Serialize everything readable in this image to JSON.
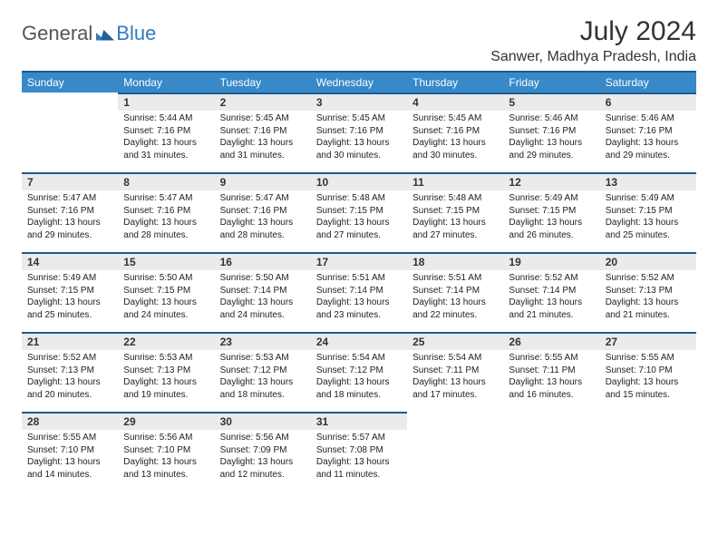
{
  "brand": {
    "general": "General",
    "blue": "Blue"
  },
  "title": "July 2024",
  "location": "Sanwer, Madhya Pradesh, India",
  "colors": {
    "header_bg": "#3789c9",
    "header_border": "#1c5c8e",
    "dayhead_bg": "#ebebeb",
    "text": "#333333",
    "brand_blue": "#2f7bbf"
  },
  "weekdays": [
    "Sunday",
    "Monday",
    "Tuesday",
    "Wednesday",
    "Thursday",
    "Friday",
    "Saturday"
  ],
  "weeks": [
    [
      null,
      {
        "n": "1",
        "sr": "5:44 AM",
        "ss": "7:16 PM",
        "dl": "13 hours and 31 minutes."
      },
      {
        "n": "2",
        "sr": "5:45 AM",
        "ss": "7:16 PM",
        "dl": "13 hours and 31 minutes."
      },
      {
        "n": "3",
        "sr": "5:45 AM",
        "ss": "7:16 PM",
        "dl": "13 hours and 30 minutes."
      },
      {
        "n": "4",
        "sr": "5:45 AM",
        "ss": "7:16 PM",
        "dl": "13 hours and 30 minutes."
      },
      {
        "n": "5",
        "sr": "5:46 AM",
        "ss": "7:16 PM",
        "dl": "13 hours and 29 minutes."
      },
      {
        "n": "6",
        "sr": "5:46 AM",
        "ss": "7:16 PM",
        "dl": "13 hours and 29 minutes."
      }
    ],
    [
      {
        "n": "7",
        "sr": "5:47 AM",
        "ss": "7:16 PM",
        "dl": "13 hours and 29 minutes."
      },
      {
        "n": "8",
        "sr": "5:47 AM",
        "ss": "7:16 PM",
        "dl": "13 hours and 28 minutes."
      },
      {
        "n": "9",
        "sr": "5:47 AM",
        "ss": "7:16 PM",
        "dl": "13 hours and 28 minutes."
      },
      {
        "n": "10",
        "sr": "5:48 AM",
        "ss": "7:15 PM",
        "dl": "13 hours and 27 minutes."
      },
      {
        "n": "11",
        "sr": "5:48 AM",
        "ss": "7:15 PM",
        "dl": "13 hours and 27 minutes."
      },
      {
        "n": "12",
        "sr": "5:49 AM",
        "ss": "7:15 PM",
        "dl": "13 hours and 26 minutes."
      },
      {
        "n": "13",
        "sr": "5:49 AM",
        "ss": "7:15 PM",
        "dl": "13 hours and 25 minutes."
      }
    ],
    [
      {
        "n": "14",
        "sr": "5:49 AM",
        "ss": "7:15 PM",
        "dl": "13 hours and 25 minutes."
      },
      {
        "n": "15",
        "sr": "5:50 AM",
        "ss": "7:15 PM",
        "dl": "13 hours and 24 minutes."
      },
      {
        "n": "16",
        "sr": "5:50 AM",
        "ss": "7:14 PM",
        "dl": "13 hours and 24 minutes."
      },
      {
        "n": "17",
        "sr": "5:51 AM",
        "ss": "7:14 PM",
        "dl": "13 hours and 23 minutes."
      },
      {
        "n": "18",
        "sr": "5:51 AM",
        "ss": "7:14 PM",
        "dl": "13 hours and 22 minutes."
      },
      {
        "n": "19",
        "sr": "5:52 AM",
        "ss": "7:14 PM",
        "dl": "13 hours and 21 minutes."
      },
      {
        "n": "20",
        "sr": "5:52 AM",
        "ss": "7:13 PM",
        "dl": "13 hours and 21 minutes."
      }
    ],
    [
      {
        "n": "21",
        "sr": "5:52 AM",
        "ss": "7:13 PM",
        "dl": "13 hours and 20 minutes."
      },
      {
        "n": "22",
        "sr": "5:53 AM",
        "ss": "7:13 PM",
        "dl": "13 hours and 19 minutes."
      },
      {
        "n": "23",
        "sr": "5:53 AM",
        "ss": "7:12 PM",
        "dl": "13 hours and 18 minutes."
      },
      {
        "n": "24",
        "sr": "5:54 AM",
        "ss": "7:12 PM",
        "dl": "13 hours and 18 minutes."
      },
      {
        "n": "25",
        "sr": "5:54 AM",
        "ss": "7:11 PM",
        "dl": "13 hours and 17 minutes."
      },
      {
        "n": "26",
        "sr": "5:55 AM",
        "ss": "7:11 PM",
        "dl": "13 hours and 16 minutes."
      },
      {
        "n": "27",
        "sr": "5:55 AM",
        "ss": "7:10 PM",
        "dl": "13 hours and 15 minutes."
      }
    ],
    [
      {
        "n": "28",
        "sr": "5:55 AM",
        "ss": "7:10 PM",
        "dl": "13 hours and 14 minutes."
      },
      {
        "n": "29",
        "sr": "5:56 AM",
        "ss": "7:10 PM",
        "dl": "13 hours and 13 minutes."
      },
      {
        "n": "30",
        "sr": "5:56 AM",
        "ss": "7:09 PM",
        "dl": "13 hours and 12 minutes."
      },
      {
        "n": "31",
        "sr": "5:57 AM",
        "ss": "7:08 PM",
        "dl": "13 hours and 11 minutes."
      },
      null,
      null,
      null
    ]
  ],
  "labels": {
    "sunrise": "Sunrise:",
    "sunset": "Sunset:",
    "daylight": "Daylight:"
  }
}
